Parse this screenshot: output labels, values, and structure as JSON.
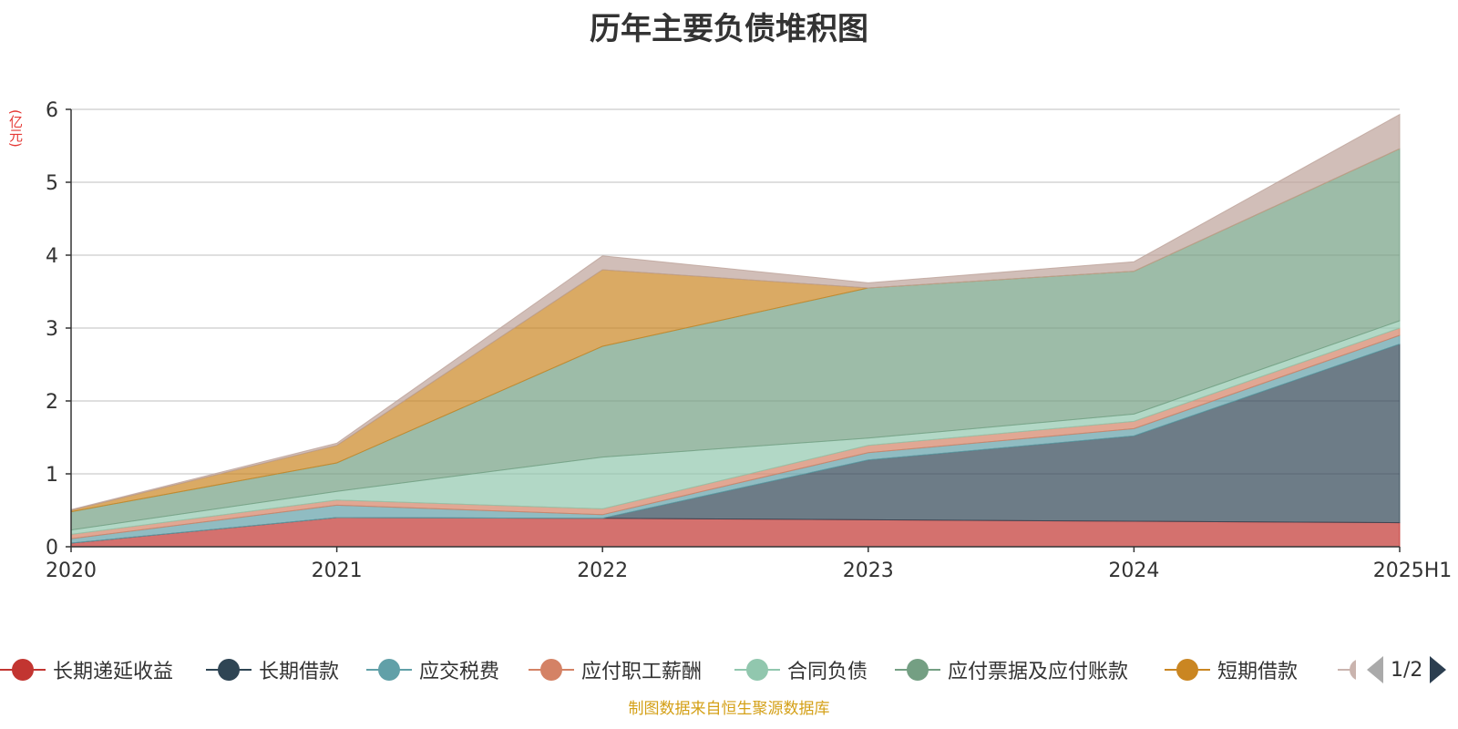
{
  "title": "历年主要负债堆积图",
  "unit_label": "(亿元)",
  "source_text": "制图数据来自恒生聚源数据库",
  "pager": {
    "text": "1/2"
  },
  "chart_data": {
    "type": "area",
    "stacked": true,
    "title": "历年主要负债堆积图",
    "ylabel": "(亿元)",
    "ylim": [
      0,
      6
    ],
    "yticks": [
      0,
      1,
      2,
      3,
      4,
      5,
      6
    ],
    "grid": true,
    "legend_position": "bottom",
    "categories": [
      "2020",
      "2021",
      "2022",
      "2023",
      "2024",
      "2025H1"
    ],
    "series": [
      {
        "name": "长期递延收益",
        "color": "#c23531",
        "values": [
          0.05,
          0.4,
          0.39,
          0.37,
          0.35,
          0.33
        ]
      },
      {
        "name": "长期借款",
        "color": "#2f4554",
        "values": [
          0.0,
          0.0,
          0.0,
          0.82,
          1.17,
          2.45
        ]
      },
      {
        "name": "应交税费",
        "color": "#61a0a8",
        "values": [
          0.06,
          0.17,
          0.05,
          0.1,
          0.1,
          0.12
        ]
      },
      {
        "name": "应付职工薪酬",
        "color": "#d48265",
        "values": [
          0.06,
          0.07,
          0.08,
          0.1,
          0.1,
          0.1
        ]
      },
      {
        "name": "合同负债",
        "color": "#91c7ae",
        "values": [
          0.06,
          0.12,
          0.71,
          0.1,
          0.1,
          0.1
        ]
      },
      {
        "name": "应付票据及应付账款",
        "color": "#749f83",
        "values": [
          0.25,
          0.39,
          1.52,
          2.06,
          1.96,
          2.36
        ]
      },
      {
        "name": "短期借款",
        "color": "#ca8622",
        "values": [
          0.02,
          0.24,
          1.05,
          0.0,
          0.0,
          0.0
        ]
      },
      {
        "name": "",
        "color": "#bda29a",
        "values": [
          0.01,
          0.03,
          0.19,
          0.07,
          0.13,
          0.47
        ]
      }
    ]
  }
}
